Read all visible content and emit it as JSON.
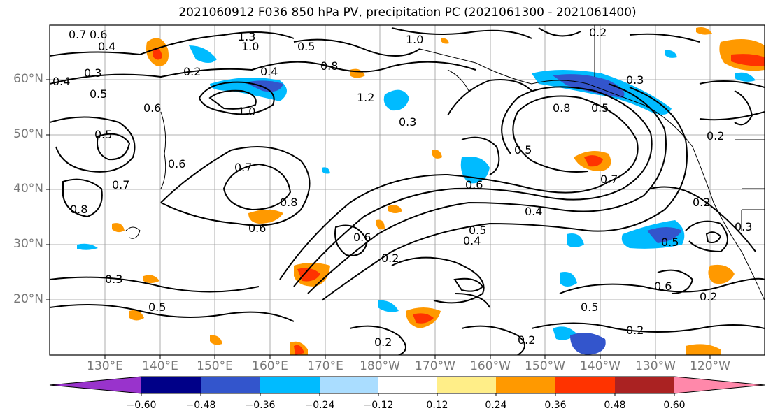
{
  "title": "2021060912 F036 850 hPa PV, precipitation PC (2021061300 - 2021061400)",
  "map": {
    "lat_labels": [
      "60°N",
      "50°N",
      "40°N",
      "30°N",
      "20°N"
    ],
    "lon_labels": [
      "130°E",
      "140°E",
      "150°E",
      "160°E",
      "170°E",
      "180°W",
      "170°W",
      "160°W",
      "150°W",
      "140°W",
      "130°W",
      "120°W"
    ],
    "contour_labels": [
      "0.7",
      "0.6",
      "0.4",
      "1.3",
      "1.0",
      "0.5",
      "1.0",
      "0.2",
      "0.3",
      "0.2",
      "0.4",
      "0.8",
      "1.0",
      "0.6",
      "0.3",
      "0.5",
      "1.2",
      "0.4",
      "0.2",
      "0.8",
      "0.5",
      "0.3",
      "0.5",
      "0.7",
      "0.6",
      "0.8",
      "0.5",
      "0.7",
      "0.6",
      "0.5",
      "0.7",
      "0.6",
      "0.8",
      "0.6",
      "0.4",
      "0.5",
      "0.4",
      "0.3",
      "0.2",
      "0.5",
      "0.3",
      "0.2",
      "0.6",
      "0.5",
      "0.2",
      "0.2",
      "0.2",
      "0.2"
    ]
  },
  "colorbar": {
    "colors": [
      "#9933cc",
      "#000088",
      "#3355cc",
      "#00bbff",
      "#aaddff",
      "#ffffff",
      "#ffee88",
      "#ff9900",
      "#ff3300",
      "#aa2222",
      "#ff88aa"
    ],
    "tick_labels": [
      "−0.60",
      "−0.48",
      "−0.36",
      "−0.24",
      "−0.12",
      "0.12",
      "0.24",
      "0.36",
      "0.48",
      "0.60"
    ]
  }
}
